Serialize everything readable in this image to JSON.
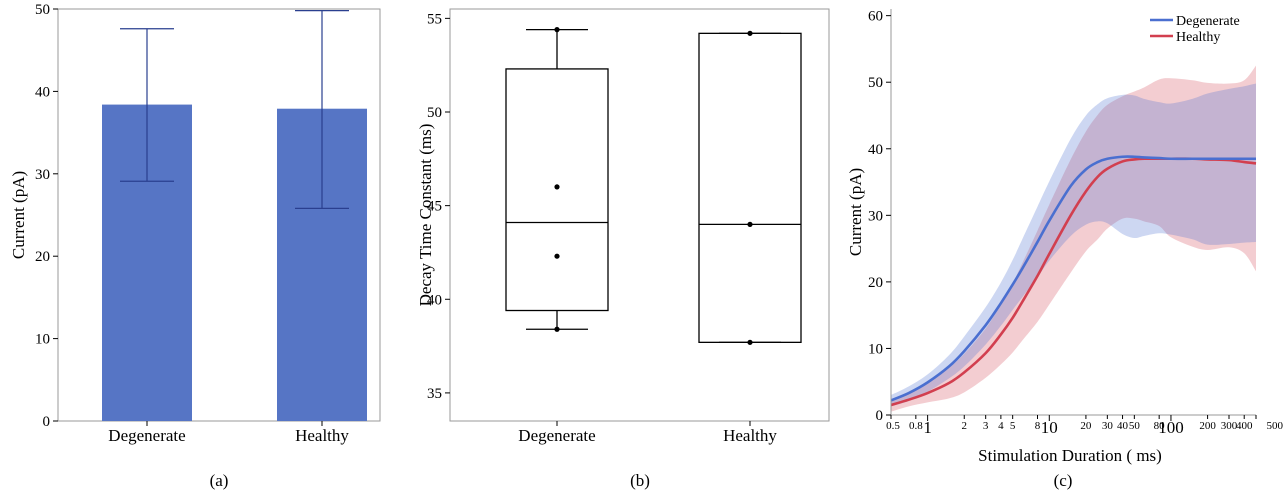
{
  "colors": {
    "degenerate": "#4a6fd0",
    "healthy": "#d23f4f",
    "bar": "#5675c5",
    "errorbar": "#2a3f8f"
  },
  "chart_data": [
    {
      "type": "bar",
      "caption": "(a)",
      "categories": [
        "Degenerate",
        "Healthy"
      ],
      "values": [
        38.4,
        37.9
      ],
      "error_high": [
        47.6,
        49.8
      ],
      "error_low": [
        29.1,
        25.8
      ],
      "ylabel": "Current (pA)",
      "xlabel": "",
      "ylim": [
        0,
        50
      ],
      "yticks": [
        0,
        10,
        20,
        30,
        40,
        50
      ],
      "grid": false
    },
    {
      "type": "box",
      "caption": "(b)",
      "categories": [
        "Degenerate",
        "Healthy"
      ],
      "boxes": [
        {
          "whisker_low": 38.4,
          "q1": 39.4,
          "median": 44.1,
          "q3": 52.3,
          "whisker_high": 54.4,
          "points": [
            38.4,
            42.3,
            46.0,
            54.4
          ]
        },
        {
          "whisker_low": 37.7,
          "q1": 37.7,
          "median": 44.0,
          "q3": 54.2,
          "whisker_high": 54.2,
          "points": [
            37.7,
            44.0,
            54.2
          ]
        }
      ],
      "ylabel": "Decay Time Constant (ms)",
      "xlabel": "",
      "ylim": [
        33.5,
        55.5
      ],
      "yticks": [
        35,
        40,
        45,
        50,
        55
      ],
      "grid": false
    },
    {
      "type": "line",
      "caption": "(c)",
      "xscale": "log",
      "xlim": [
        0.5,
        500
      ],
      "ylim": [
        0,
        61
      ],
      "xticks": [
        {
          "value": 0.5,
          "label": "0.5",
          "size": "small"
        },
        {
          "value": 0.8,
          "label": "0.8",
          "size": "small"
        },
        {
          "value": 1,
          "label": "1",
          "size": "big"
        },
        {
          "value": 2,
          "label": "2",
          "size": "small"
        },
        {
          "value": 3,
          "label": "3",
          "size": "small"
        },
        {
          "value": 4,
          "label": "4",
          "size": "small"
        },
        {
          "value": 5,
          "label": "5",
          "size": "small"
        },
        {
          "value": 8,
          "label": "8",
          "size": "small"
        },
        {
          "value": 10,
          "label": "10",
          "size": "big"
        },
        {
          "value": 20,
          "label": "20",
          "size": "small"
        },
        {
          "value": 30,
          "label": "30",
          "size": "small"
        },
        {
          "value": 40,
          "label": "40",
          "size": "small"
        },
        {
          "value": 50,
          "label": "50",
          "size": "small"
        },
        {
          "value": 80,
          "label": "80",
          "size": "small"
        },
        {
          "value": 100,
          "label": "100",
          "size": "big"
        },
        {
          "value": 200,
          "label": "200",
          "size": "small"
        },
        {
          "value": 300,
          "label": "300",
          "size": "small"
        },
        {
          "value": 400,
          "label": "400",
          "size": "small"
        },
        {
          "value": 500,
          "label": "500",
          "size": "small"
        }
      ],
      "yticks": [
        0,
        10,
        20,
        30,
        40,
        50,
        60
      ],
      "xlabel": "Stimulation Duration ( ms)",
      "ylabel": "Current (pA)",
      "legend_position": "top-right",
      "grid": false,
      "x": [
        0.5,
        0.7,
        1,
        1.5,
        2,
        3,
        4,
        5,
        6,
        8,
        10,
        15,
        20,
        25,
        30,
        40,
        50,
        60,
        80,
        100,
        150,
        200,
        300,
        400,
        500
      ],
      "series": [
        {
          "name": "Degenerate",
          "color_key": "degenerate",
          "values": [
            2.2,
            3.3,
            4.9,
            7.3,
            9.6,
            13.5,
            16.8,
            19.6,
            22.0,
            26.0,
            29.2,
            34.4,
            36.9,
            38.0,
            38.5,
            38.8,
            38.8,
            38.7,
            38.6,
            38.5,
            38.5,
            38.5,
            38.5,
            38.5,
            38.5
          ],
          "band_upper": [
            3.0,
            4.3,
            6.1,
            9.0,
            11.8,
            16.2,
            19.9,
            23.3,
            26.4,
            31.3,
            35.1,
            41.5,
            45.0,
            46.7,
            47.6,
            48.1,
            48.0,
            47.5,
            47.0,
            46.8,
            47.5,
            48.3,
            49.0,
            49.4,
            49.8
          ],
          "band_lower": [
            1.3,
            2.1,
            3.5,
            5.5,
            7.3,
            10.6,
            13.4,
            15.8,
            17.7,
            20.7,
            23.2,
            26.9,
            28.6,
            29.1,
            28.8,
            27.2,
            26.6,
            26.9,
            27.3,
            27.1,
            26.4,
            25.6,
            25.7,
            25.9,
            26.0
          ]
        },
        {
          "name": "Healthy",
          "color_key": "healthy",
          "values": [
            1.5,
            2.3,
            3.3,
            4.8,
            6.4,
            9.3,
            12.1,
            14.6,
            17.0,
            20.9,
            24.2,
            30.0,
            33.6,
            35.8,
            37.0,
            38.1,
            38.4,
            38.5,
            38.5,
            38.5,
            38.5,
            38.4,
            38.3,
            38.0,
            37.8
          ],
          "band_upper": [
            2.4,
            3.3,
            4.9,
            7.1,
            9.2,
            13.0,
            16.6,
            19.8,
            22.8,
            27.7,
            31.6,
            38.4,
            42.6,
            45.1,
            46.6,
            47.9,
            48.6,
            49.2,
            50.4,
            50.6,
            50.3,
            49.9,
            49.8,
            50.3,
            52.5
          ],
          "band_lower": [
            0.5,
            1.3,
            1.9,
            2.5,
            3.4,
            5.6,
            7.6,
            9.4,
            11.2,
            14.0,
            16.6,
            21.4,
            24.6,
            26.4,
            28.0,
            29.5,
            29.5,
            29.1,
            28.4,
            26.7,
            25.3,
            24.8,
            25.2,
            24.3,
            21.6
          ]
        }
      ]
    }
  ]
}
